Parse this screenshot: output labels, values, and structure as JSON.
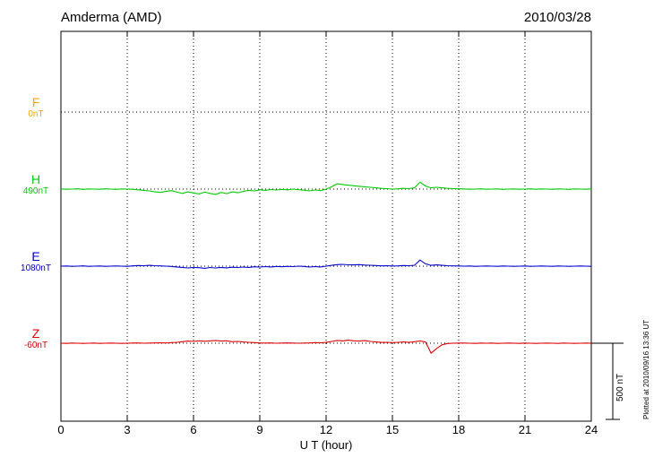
{
  "header": {
    "station_title": "Amderma (AMD)",
    "date": "2010/03/28"
  },
  "x_axis": {
    "label": "U T (hour)",
    "ticks": [
      0,
      3,
      6,
      9,
      12,
      15,
      18,
      21,
      24
    ],
    "min": 0,
    "max": 24
  },
  "scale_bar": {
    "label": "500 nT",
    "nT": 500
  },
  "footer_note": "Plotted at 2010/09/16 13:36 UT",
  "chart_data": {
    "type": "line",
    "title": "Amderma (AMD) magnetogram 2010/03/28",
    "xlabel": "U T (hour)",
    "ylabel": "",
    "x_range": [
      0,
      24
    ],
    "x_hours_step": 0.25,
    "grid": "dotted vertical at 3h intervals, dotted horizontal at each channel baseline",
    "scale_nT": 500,
    "series": [
      {
        "name": "F",
        "baseline_nT": 0,
        "baseline_label": "0nT",
        "color": "#ffa500",
        "no_data": true,
        "delta_nT": []
      },
      {
        "name": "H",
        "baseline_nT": 490,
        "baseline_label": "490nT",
        "color": "#00cc00",
        "no_data": false,
        "delta_nT": [
          1,
          -1,
          0,
          2,
          -2,
          1,
          0,
          -1,
          2,
          0,
          -2,
          1,
          0,
          -2,
          -5,
          -8,
          -12,
          -18,
          -22,
          -15,
          -10,
          -20,
          -28,
          -18,
          -25,
          -32,
          -20,
          -28,
          -35,
          -22,
          -30,
          -18,
          -24,
          -15,
          -8,
          -12,
          -5,
          -8,
          -3,
          -6,
          -2,
          -5,
          0,
          -4,
          -7,
          -12,
          -6,
          -10,
          0,
          15,
          35,
          30,
          26,
          22,
          18,
          15,
          12,
          8,
          5,
          3,
          0,
          2,
          5,
          3,
          8,
          45,
          20,
          8,
          12,
          8,
          5,
          3,
          2,
          1,
          -1,
          0,
          2,
          -1,
          0,
          1,
          -2,
          0,
          1,
          -1,
          0,
          2,
          -1,
          1,
          0,
          -1,
          1,
          0,
          -2,
          1,
          0,
          -1,
          2
        ]
      },
      {
        "name": "E",
        "baseline_nT": 1080,
        "baseline_label": "1080nT",
        "color": "#0000cc",
        "no_data": false,
        "delta_nT": [
          0,
          1,
          -1,
          0,
          2,
          -1,
          0,
          1,
          -1,
          0,
          1,
          0,
          -1,
          2,
          4,
          3,
          5,
          3,
          2,
          0,
          -2,
          -5,
          -8,
          -12,
          -8,
          -10,
          -14,
          -9,
          -12,
          -8,
          -11,
          -7,
          -9,
          -6,
          -8,
          -4,
          -6,
          -3,
          -5,
          -2,
          -4,
          -1,
          -3,
          0,
          -2,
          -6,
          -3,
          -5,
          0,
          5,
          10,
          12,
          9,
          8,
          10,
          7,
          6,
          4,
          2,
          3,
          1,
          2,
          4,
          3,
          6,
          40,
          15,
          5,
          8,
          5,
          3,
          2,
          1,
          0,
          1,
          -1,
          0,
          1,
          0,
          -1,
          1,
          0,
          -1,
          0,
          1,
          -1,
          0,
          1,
          0,
          -1,
          1,
          0,
          -1,
          0,
          1,
          0,
          -1
        ]
      },
      {
        "name": "Z",
        "baseline_nT": -60,
        "baseline_label": "-60nT",
        "color": "#dd0000",
        "no_data": false,
        "delta_nT": [
          0,
          -1,
          1,
          0,
          -1,
          0,
          1,
          -1,
          0,
          1,
          0,
          -1,
          0,
          1,
          2,
          0,
          1,
          2,
          3,
          2,
          4,
          6,
          10,
          14,
          12,
          16,
          13,
          15,
          18,
          14,
          16,
          10,
          12,
          8,
          6,
          4,
          2,
          1,
          2,
          0,
          1,
          2,
          1,
          0,
          1,
          2,
          4,
          3,
          5,
          12,
          18,
          15,
          20,
          16,
          14,
          17,
          12,
          8,
          5,
          6,
          4,
          6,
          8,
          5,
          10,
          15,
          8,
          -65,
          -35,
          -10,
          -2,
          0,
          1,
          1,
          0,
          -1,
          1,
          0,
          1,
          -1,
          0,
          1,
          0,
          -1,
          1,
          0,
          -1,
          0,
          1,
          0,
          -1,
          1,
          0,
          -1,
          0,
          1,
          0
        ]
      }
    ]
  }
}
